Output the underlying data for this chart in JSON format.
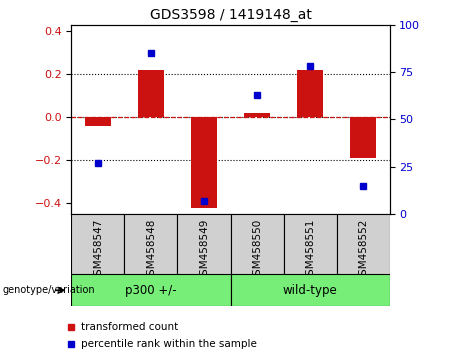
{
  "title": "GDS3598 / 1419148_at",
  "samples": [
    "GSM458547",
    "GSM458548",
    "GSM458549",
    "GSM458550",
    "GSM458551",
    "GSM458552"
  ],
  "red_bars": [
    -0.04,
    0.22,
    -0.42,
    0.02,
    0.22,
    -0.19
  ],
  "blue_dots_pct": [
    27,
    85,
    7,
    63,
    78,
    15
  ],
  "groups": [
    {
      "label": "p300 +/-",
      "start": 0,
      "end": 3,
      "color": "#77ee77"
    },
    {
      "label": "wild-type",
      "start": 3,
      "end": 6,
      "color": "#77ee77"
    }
  ],
  "ylim_left": [
    -0.45,
    0.43
  ],
  "ylim_right": [
    0,
    100
  ],
  "yticks_left": [
    -0.4,
    -0.2,
    0.0,
    0.2,
    0.4
  ],
  "yticks_right": [
    0,
    25,
    50,
    75,
    100
  ],
  "bar_color": "#cc1111",
  "dot_color": "#0000cc",
  "zero_line_color": "#cc1111",
  "grid_color": "black",
  "xlabel_area_color": "#d0d0d0",
  "legend_red": "transformed count",
  "legend_blue": "percentile rank within the sample",
  "genotype_label": "genotype/variation",
  "group_separator": 2.5,
  "bar_width": 0.5
}
